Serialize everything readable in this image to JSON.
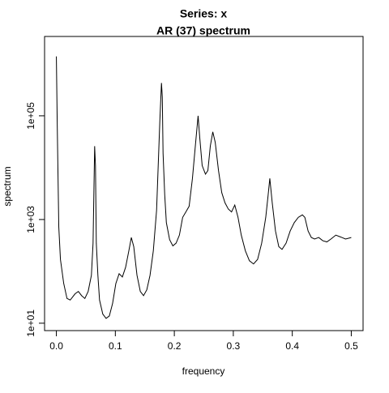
{
  "chart_data": {
    "type": "line",
    "title": "Series: x",
    "subtitle": "AR (37) spectrum",
    "x_label": "frequency",
    "y_label": "spectrum",
    "log_y": true,
    "color": "#000000",
    "xlim": [
      -0.02,
      0.52
    ],
    "xticks": [
      {
        "value": 0,
        "label": "0.0"
      },
      0.1,
      0.2,
      0.3,
      0.4,
      0.5
    ],
    "ylim": [
      7.2,
      3390000
    ],
    "yticks": [
      {
        "value": 10,
        "label": "1e+01"
      },
      {
        "value": 1000,
        "label": "1e+03"
      },
      {
        "value": 100000,
        "label": "1e+05"
      }
    ],
    "series": [
      {
        "name": "spectrum",
        "color": "#000000",
        "x": [
          0,
          0.0014,
          0.0041,
          0.0069,
          0.0124,
          0.018,
          0.0235,
          0.0318,
          0.0373,
          0.0428,
          0.0483,
          0.0539,
          0.0594,
          0.0622,
          0.0649,
          0.0663,
          0.0677,
          0.0704,
          0.0732,
          0.0787,
          0.0843,
          0.0898,
          0.0953,
          0.1008,
          0.1064,
          0.1119,
          0.1174,
          0.1229,
          0.1271,
          0.1312,
          0.1367,
          0.1423,
          0.1478,
          0.1533,
          0.1588,
          0.1644,
          0.1699,
          0.1754,
          0.1782,
          0.1796,
          0.1809,
          0.1837,
          0.1865,
          0.192,
          0.1975,
          0.203,
          0.2086,
          0.2141,
          0.2196,
          0.2251,
          0.2307,
          0.2362,
          0.2403,
          0.2431,
          0.2472,
          0.2528,
          0.2569,
          0.261,
          0.2652,
          0.2693,
          0.2749,
          0.2804,
          0.2859,
          0.2914,
          0.297,
          0.3025,
          0.308,
          0.3135,
          0.3204,
          0.3273,
          0.3343,
          0.3412,
          0.3481,
          0.355,
          0.3591,
          0.3619,
          0.366,
          0.3715,
          0.3771,
          0.3826,
          0.3895,
          0.3964,
          0.4033,
          0.4102,
          0.4171,
          0.4213,
          0.4268,
          0.4323,
          0.4378,
          0.4448,
          0.4517,
          0.4586,
          0.4655,
          0.4738,
          0.482,
          0.4903,
          0.5
        ],
        "values": [
          1400000,
          78000,
          720,
          170,
          59,
          30,
          28,
          37,
          41,
          34,
          30,
          41,
          84,
          350,
          26000,
          11000,
          350,
          84,
          28,
          15,
          12.4,
          13.8,
          24,
          58,
          90,
          78,
          120,
          250,
          450,
          300,
          84,
          41,
          34,
          44,
          84,
          250,
          1500,
          78000,
          430000,
          230000,
          19000,
          3000,
          870,
          410,
          310,
          350,
          500,
          1100,
          1400,
          1800,
          6200,
          31000,
          100000,
          38000,
          11000,
          7500,
          8800,
          26000,
          49000,
          31000,
          8800,
          3300,
          2100,
          1600,
          1400,
          1900,
          1100,
          500,
          250,
          160,
          139,
          170,
          350,
          1100,
          3000,
          6200,
          2100,
          600,
          300,
          265,
          350,
          600,
          870,
          1100,
          1230,
          1100,
          600,
          450,
          420,
          450,
          390,
          370,
          420,
          500,
          460,
          420,
          450
        ]
      }
    ]
  }
}
